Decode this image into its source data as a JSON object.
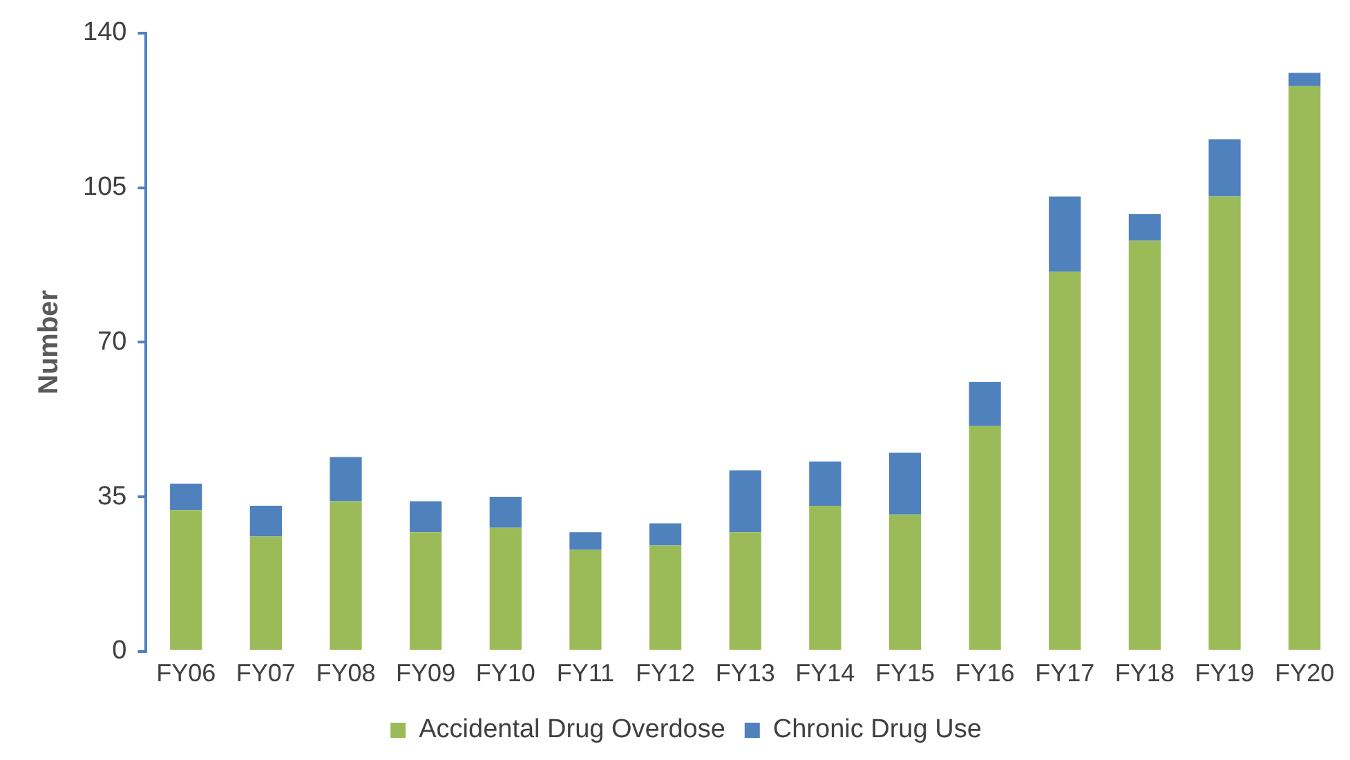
{
  "chart_data": {
    "type": "bar",
    "stacked": true,
    "ylabel": "Number",
    "categories": [
      "FY06",
      "FY07",
      "FY08",
      "FY09",
      "FY10",
      "FY11",
      "FY12",
      "FY13",
      "FY14",
      "FY15",
      "FY16",
      "FY17",
      "FY18",
      "FY19",
      "FY20"
    ],
    "series": [
      {
        "name": "Accidental Drug Overdose",
        "color": "#9bbb59",
        "values": [
          32,
          26,
          34,
          27,
          28,
          23,
          24,
          27,
          33,
          31,
          51,
          86,
          93,
          103,
          128
        ]
      },
      {
        "name": "Chronic Drug Use",
        "color": "#4f81bd",
        "values": [
          6,
          7,
          10,
          7,
          7,
          4,
          5,
          14,
          10,
          14,
          10,
          17,
          6,
          13,
          3
        ]
      }
    ],
    "ylim": [
      0,
      140
    ],
    "yticks": [
      0,
      35,
      70,
      105,
      140
    ],
    "grid": false,
    "legend": "bottom"
  }
}
